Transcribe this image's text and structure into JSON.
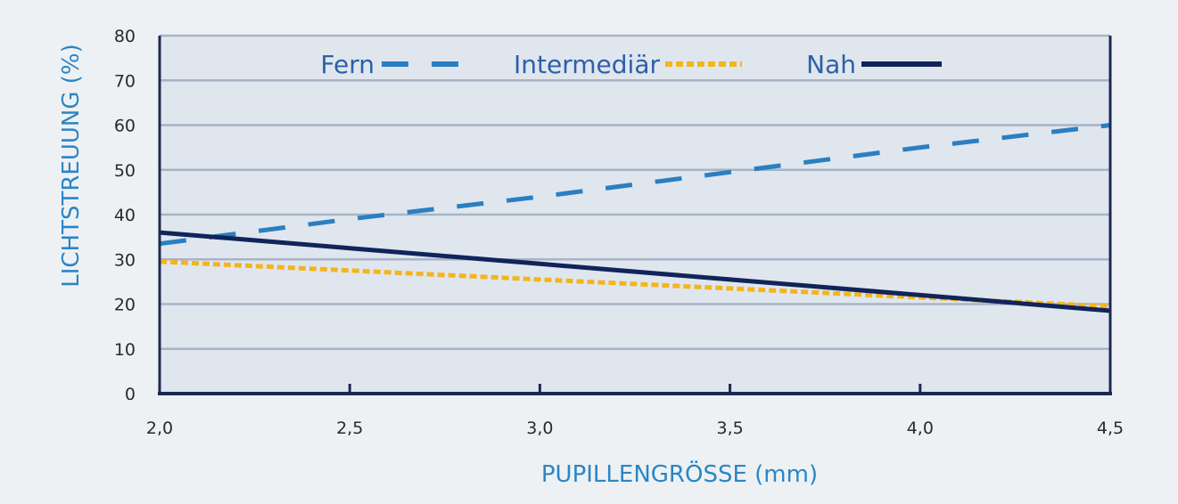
{
  "chart_data": {
    "type": "line",
    "title": "",
    "xlabel": "PUPILLENGRÖSSE (mm)",
    "ylabel": "LICHTSTREUUNG (%)",
    "xlim": [
      2.0,
      4.5
    ],
    "ylim": [
      0,
      80
    ],
    "x_ticks": [
      2.0,
      2.5,
      3.0,
      3.5,
      4.0,
      4.5
    ],
    "x_tick_labels": [
      "2,0",
      "2,5",
      "3,0",
      "3,5",
      "4,0",
      "4,5"
    ],
    "y_ticks": [
      0,
      10,
      20,
      30,
      40,
      50,
      60,
      70,
      80
    ],
    "y_tick_labels": [
      "0",
      "10",
      "20",
      "30",
      "40",
      "50",
      "60",
      "70",
      "80"
    ],
    "grid": "horizontal",
    "legend_position": "top-center",
    "colors": {
      "plot_background": "#dfe6ee",
      "page_background": "#eef1f4",
      "gridline": "#a8b3c7",
      "axis": "#1b2a52",
      "axis_title": "#2b86c5",
      "legend_text": "#2f5fa8"
    },
    "series": [
      {
        "name": "Fern",
        "style": "dashed",
        "color": "#2a7fc1",
        "x": [
          2.0,
          2.5,
          3.0,
          3.5,
          4.0,
          4.5
        ],
        "y": [
          33.5,
          39.0,
          44.0,
          49.5,
          55.0,
          60.0
        ]
      },
      {
        "name": "Intermediär",
        "style": "dotted",
        "color": "#f3b51e",
        "x": [
          2.0,
          2.5,
          3.0,
          3.5,
          4.0,
          4.5
        ],
        "y": [
          29.5,
          27.5,
          25.5,
          23.5,
          21.5,
          19.5
        ]
      },
      {
        "name": "Nah",
        "style": "solid",
        "color": "#10245a",
        "x": [
          2.0,
          2.5,
          3.0,
          3.5,
          4.0,
          4.5
        ],
        "y": [
          36.0,
          32.5,
          29.0,
          25.5,
          22.0,
          18.5
        ]
      }
    ]
  }
}
